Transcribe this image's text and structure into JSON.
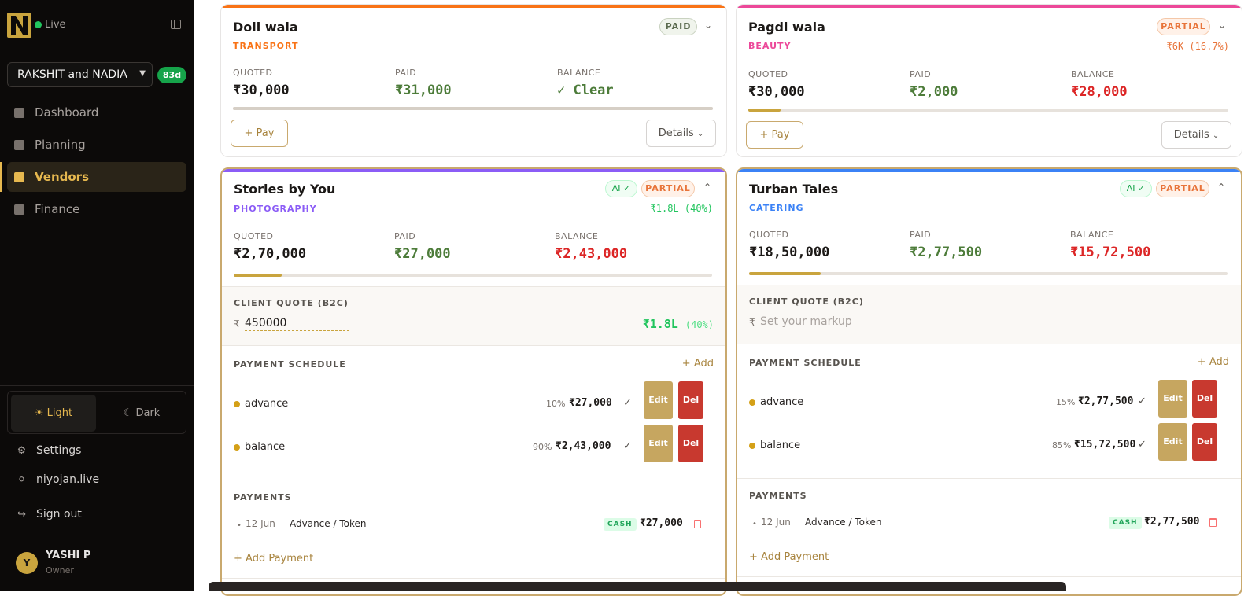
{
  "sidebar": {
    "status": "Live",
    "team": "RAKSHIT and NADIA",
    "days_left": "83d",
    "nav": [
      {
        "label": "Dashboard",
        "icon": "grid-icon"
      },
      {
        "label": "Planning",
        "icon": "calendar-icon"
      },
      {
        "label": "Vendors",
        "icon": "package-icon",
        "active": true
      },
      {
        "label": "Finance",
        "icon": "wallet-icon"
      }
    ],
    "theme_light": "Light",
    "theme_dark": "Dark",
    "settings": "Settings",
    "website": "niyojan.live",
    "sign_out": "Sign out",
    "user_initial": "Y",
    "user_name": "YASHI P",
    "user_role": "Owner"
  },
  "labels": {
    "quoted": "QUOTED",
    "paid": "PAID",
    "balance": "BALANCE",
    "pay": "+ Pay",
    "details": "Details",
    "client_quote": "CLIENT QUOTE (B2C)",
    "payment_schedule": "PAYMENT SCHEDULE",
    "add": "+ Add",
    "payments": "PAYMENTS",
    "add_payment": "+ Add Payment",
    "edit": "Edit",
    "del": "Del",
    "ai": "AI ✓",
    "cash": "CASH"
  },
  "vendors": [
    {
      "name": "Doli wala",
      "category": "TRANSPORT",
      "category_color": "#f97316",
      "status": "PAID",
      "quoted": "₹30,000",
      "paid": "₹31,000",
      "balance": "✓ Clear",
      "progress": 1.0
    },
    {
      "name": "Pagdi wala",
      "category": "BEAUTY",
      "category_color": "#ec4899",
      "status": "PARTIAL",
      "margin": "₹6K (16.7%)",
      "quoted": "₹30,000",
      "paid": "₹2,000",
      "balance": "₹28,000",
      "progress": 0.067
    },
    {
      "name": "Stories by You",
      "category": "PHOTOGRAPHY",
      "category_color": "#8b5cf6",
      "status": "PARTIAL",
      "margin": "₹1.8L (40%)",
      "quoted": "₹2,70,000",
      "paid": "₹27,000",
      "balance": "₹2,43,000",
      "progress": 0.1,
      "client_quote_value": "450000",
      "b2c_margin": "₹1.8L",
      "b2c_margin_pct": "(40%)",
      "schedule": [
        {
          "name": "advance",
          "pct": "10%",
          "amount": "₹27,000"
        },
        {
          "name": "balance",
          "pct": "90%",
          "amount": "₹2,43,000"
        }
      ],
      "payments": [
        {
          "date": "12 Jun",
          "desc": "Advance / Token",
          "method": "CASH",
          "amount": "₹27,000"
        }
      ]
    },
    {
      "name": "Turban Tales",
      "category": "CATERING",
      "category_color": "#3b82f6",
      "status": "PARTIAL",
      "quoted": "₹18,50,000",
      "paid": "₹2,77,500",
      "balance": "₹15,72,500",
      "progress": 0.15,
      "client_quote_placeholder": "Set your markup",
      "schedule": [
        {
          "name": "advance",
          "pct": "15%",
          "amount": "₹2,77,500"
        },
        {
          "name": "balance",
          "pct": "85%",
          "amount": "₹15,72,500"
        }
      ],
      "payments": [
        {
          "date": "12 Jun",
          "desc": "Advance / Token",
          "method": "CASH",
          "amount": "₹2,77,500"
        }
      ]
    }
  ],
  "colors": {
    "paid_green": "#4d7c3a",
    "balance_red": "#dc2626",
    "accent_gold": "#c9a43e"
  }
}
